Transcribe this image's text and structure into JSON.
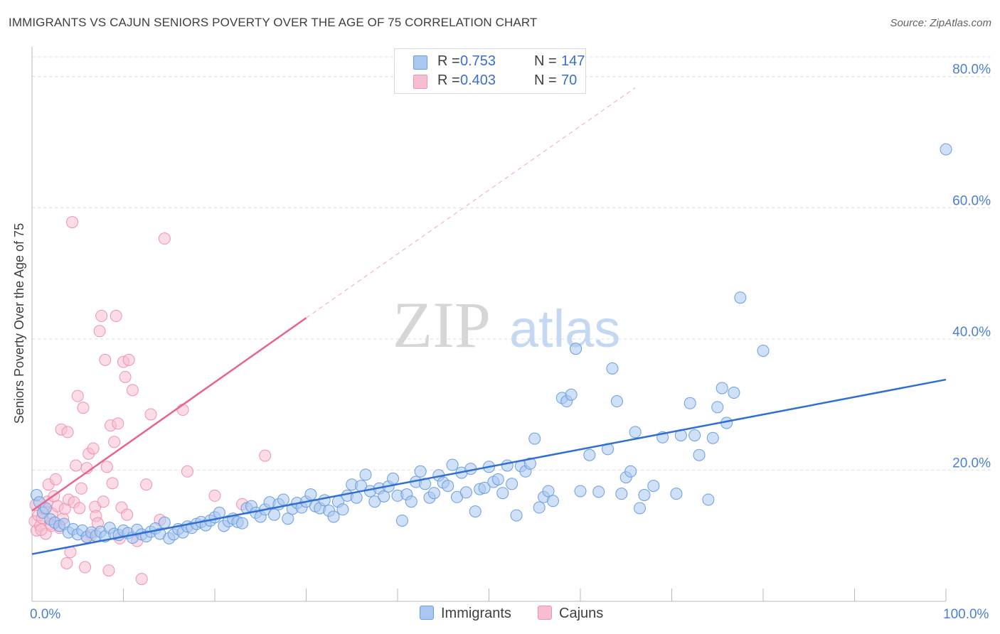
{
  "title": "IMMIGRANTS VS CAJUN SENIORS POVERTY OVER THE AGE OF 75 CORRELATION CHART",
  "source": "Source: ZipAtlas.com",
  "watermark": {
    "zip": "ZIP",
    "atlas": "atlas"
  },
  "colors": {
    "blue_fill": "#a9c7f0",
    "blue_stroke": "#6a9ee0",
    "blue_line": "#2f6fd1",
    "pink_fill": "#f7bdd0",
    "pink_stroke": "#ef93b1",
    "pink_line": "#e8648f",
    "tick_text": "#4a7fd4",
    "grid": "#dcdcdc"
  },
  "legend": {
    "rows": [
      {
        "r_label": "R =",
        "r_value": "0.753",
        "n_label": "N =",
        "n_value": "147"
      },
      {
        "r_label": "R =",
        "r_value": "0.403",
        "n_label": "N =",
        "n_value": "70"
      }
    ]
  },
  "bottom_legend": {
    "immigrants": "Immigrants",
    "cajuns": "Cajuns"
  },
  "chart_data": {
    "type": "scatter",
    "title": "IMMIGRANTS VS CAJUN SENIORS POVERTY OVER THE AGE OF 75 CORRELATION CHART",
    "xlabel": "",
    "ylabel": "Seniors Poverty Over the Age of 75",
    "xlim": [
      0,
      100
    ],
    "ylim": [
      0,
      83
    ],
    "x_tick_labels": [
      "0.0%",
      "100.0%"
    ],
    "y_ticks": [
      20,
      40,
      60,
      80
    ],
    "y_tick_labels": [
      "20.0%",
      "40.0%",
      "60.0%",
      "80.0%"
    ],
    "series": [
      {
        "name": "Immigrants",
        "color": "blue",
        "trend": {
          "x0": 0,
          "y0": 7.2,
          "x1": 100,
          "y1": 33.8
        },
        "points": [
          [
            0.5,
            16.2
          ],
          [
            0.8,
            15.1
          ],
          [
            1.2,
            13.5
          ],
          [
            1.5,
            14.2
          ],
          [
            2,
            12.5
          ],
          [
            2.5,
            12
          ],
          [
            3,
            11.5
          ],
          [
            3.5,
            11.8
          ],
          [
            4,
            10.5
          ],
          [
            4.5,
            11
          ],
          [
            5,
            10.2
          ],
          [
            5.5,
            10.8
          ],
          [
            6,
            9.8
          ],
          [
            6.5,
            10.5
          ],
          [
            7,
            10
          ],
          [
            7.5,
            10.6
          ],
          [
            8,
            9.9
          ],
          [
            8.5,
            11.2
          ],
          [
            9,
            10.3
          ],
          [
            9.5,
            10.1
          ],
          [
            10,
            10.8
          ],
          [
            10.5,
            10.4
          ],
          [
            11,
            9.7
          ],
          [
            11.5,
            10.9
          ],
          [
            12,
            10.2
          ],
          [
            12.5,
            9.9
          ],
          [
            13,
            10.6
          ],
          [
            13.5,
            11.1
          ],
          [
            14,
            10.3
          ],
          [
            14.5,
            12
          ],
          [
            15,
            9.6
          ],
          [
            15.5,
            10.2
          ],
          [
            16,
            11
          ],
          [
            16.5,
            10.5
          ],
          [
            17,
            11.4
          ],
          [
            17.5,
            11.2
          ],
          [
            18,
            11.8
          ],
          [
            18.5,
            12.1
          ],
          [
            19,
            11.6
          ],
          [
            19.5,
            12.3
          ],
          [
            20,
            12.8
          ],
          [
            20.5,
            13.5
          ],
          [
            21,
            11.5
          ],
          [
            21.5,
            12.2
          ],
          [
            22,
            12.6
          ],
          [
            22.5,
            12.1
          ],
          [
            23,
            11.9
          ],
          [
            23.5,
            14.2
          ],
          [
            24,
            14.5
          ],
          [
            24.5,
            13.5
          ],
          [
            25,
            12.9
          ],
          [
            25.5,
            14.0
          ],
          [
            26,
            15.1
          ],
          [
            26.5,
            13.2
          ],
          [
            27,
            14.8
          ],
          [
            27.5,
            15.5
          ],
          [
            28,
            12.6
          ],
          [
            28.5,
            14.1
          ],
          [
            29,
            15.0
          ],
          [
            29.5,
            14.3
          ],
          [
            30,
            15.2
          ],
          [
            30.5,
            16.3
          ],
          [
            31,
            14.5
          ],
          [
            31.5,
            14.2
          ],
          [
            32,
            15.4
          ],
          [
            32.5,
            13.8
          ],
          [
            33,
            12.9
          ],
          [
            33.5,
            15.2
          ],
          [
            34,
            14.0
          ],
          [
            34.5,
            16.1
          ],
          [
            35,
            17.8
          ],
          [
            35.5,
            15.8
          ],
          [
            36,
            17.6
          ],
          [
            36.5,
            19.3
          ],
          [
            37,
            16.8
          ],
          [
            37.5,
            15.2
          ],
          [
            38,
            17.2
          ],
          [
            38.5,
            16.0
          ],
          [
            39,
            17.5
          ],
          [
            39.5,
            18.7
          ],
          [
            40,
            16.1
          ],
          [
            40.5,
            12.3
          ],
          [
            41,
            16.3
          ],
          [
            41.5,
            15.2
          ],
          [
            42,
            18.2
          ],
          [
            42.5,
            19.8
          ],
          [
            43,
            17.9
          ],
          [
            43.5,
            15.8
          ],
          [
            44,
            16.5
          ],
          [
            44.5,
            19.2
          ],
          [
            45,
            18.1
          ],
          [
            45.5,
            17.6
          ],
          [
            46,
            20.8
          ],
          [
            46.5,
            15.9
          ],
          [
            47,
            19.6
          ],
          [
            47.5,
            16.6
          ],
          [
            48,
            20.2
          ],
          [
            48.5,
            13.7
          ],
          [
            49,
            17.1
          ],
          [
            49.5,
            17.3
          ],
          [
            50,
            20.5
          ],
          [
            50.5,
            18.2
          ],
          [
            51,
            18.6
          ],
          [
            51.5,
            16.5
          ],
          [
            52,
            20.7
          ],
          [
            52.5,
            17.9
          ],
          [
            53,
            13.1
          ],
          [
            53.5,
            20.6
          ],
          [
            54,
            19.8
          ],
          [
            54.5,
            21
          ],
          [
            55,
            24.8
          ],
          [
            55.5,
            14.3
          ],
          [
            56,
            15.9
          ],
          [
            56.5,
            16.8
          ],
          [
            57,
            15.3
          ],
          [
            58,
            31
          ],
          [
            58.5,
            30.5
          ],
          [
            59,
            31.5
          ],
          [
            59.5,
            38.5
          ],
          [
            60,
            16.8
          ],
          [
            61,
            22.3
          ],
          [
            62,
            16.7
          ],
          [
            63,
            23.2
          ],
          [
            63.5,
            35.5
          ],
          [
            64,
            30.5
          ],
          [
            64.5,
            16.4
          ],
          [
            65,
            18.9
          ],
          [
            65.5,
            19.8
          ],
          [
            66,
            25.8
          ],
          [
            66.5,
            14.2
          ],
          [
            67,
            16.2
          ],
          [
            68,
            17.6
          ],
          [
            69,
            25
          ],
          [
            70.5,
            16.4
          ],
          [
            71,
            25.3
          ],
          [
            72,
            30.2
          ],
          [
            72.5,
            25.3
          ],
          [
            73,
            22.3
          ],
          [
            74,
            15.5
          ],
          [
            74.5,
            24.9
          ],
          [
            75,
            29.6
          ],
          [
            75.5,
            32.5
          ],
          [
            76,
            27.2
          ],
          [
            76.8,
            31.8
          ],
          [
            77.5,
            46.3
          ],
          [
            80,
            38.2
          ],
          [
            100,
            68.9
          ]
        ]
      },
      {
        "name": "Cajuns",
        "color": "pink",
        "trend": {
          "x0": 0,
          "y0": 13.8,
          "x1": 30,
          "y1": 43.2,
          "extend_to": [
            66,
            78.3
          ]
        },
        "points": [
          [
            0.3,
            12.2
          ],
          [
            0.5,
            10.8
          ],
          [
            0.7,
            13.1
          ],
          [
            0.9,
            11.5
          ],
          [
            1.1,
            12.7
          ],
          [
            1.3,
            14.1
          ],
          [
            1.5,
            10.3
          ],
          [
            1.7,
            15.2
          ],
          [
            1.8,
            17.8
          ],
          [
            2,
            11.8
          ],
          [
            2.2,
            13.4
          ],
          [
            2.4,
            16.0
          ],
          [
            2.6,
            18.6
          ],
          [
            2.8,
            14.5
          ],
          [
            3,
            11.2
          ],
          [
            3.2,
            26.2
          ],
          [
            3.4,
            12.6
          ],
          [
            3.6,
            14.1
          ],
          [
            3.8,
            5.8
          ],
          [
            3.9,
            25.8
          ],
          [
            4,
            15.5
          ],
          [
            4.2,
            7.5
          ],
          [
            4.4,
            57.8
          ],
          [
            4.6,
            15.1
          ],
          [
            4.8,
            20.7
          ],
          [
            5,
            31.3
          ],
          [
            5.2,
            14.2
          ],
          [
            5.4,
            17.2
          ],
          [
            5.6,
            29.5
          ],
          [
            5.8,
            5.2
          ],
          [
            6,
            20.3
          ],
          [
            6.2,
            22.5
          ],
          [
            6.5,
            10.1
          ],
          [
            6.7,
            23.3
          ],
          [
            6.9,
            14.4
          ],
          [
            7,
            13
          ],
          [
            7.2,
            11.9
          ],
          [
            7.4,
            41.2
          ],
          [
            7.6,
            43.5
          ],
          [
            7.8,
            15.2
          ],
          [
            8,
            36.8
          ],
          [
            8.2,
            20.5
          ],
          [
            8.4,
            4.7
          ],
          [
            8.6,
            26.8
          ],
          [
            8.8,
            18
          ],
          [
            9,
            24.3
          ],
          [
            9.2,
            43.5
          ],
          [
            9.4,
            27.1
          ],
          [
            9.6,
            9.6
          ],
          [
            9.8,
            14.3
          ],
          [
            10,
            36.5
          ],
          [
            10.2,
            34.2
          ],
          [
            10.4,
            13.2
          ],
          [
            10.6,
            36.8
          ],
          [
            11,
            32.2
          ],
          [
            11.5,
            9.2
          ],
          [
            12,
            3.4
          ],
          [
            12.5,
            17.8
          ],
          [
            13,
            28.5
          ],
          [
            14,
            12.4
          ],
          [
            14.5,
            55.3
          ],
          [
            16.5,
            29.2
          ],
          [
            17,
            19.8
          ],
          [
            20,
            16.1
          ],
          [
            23,
            14.8
          ],
          [
            25.5,
            22.2
          ],
          [
            2.1,
            11.5
          ],
          [
            1,
            10.9
          ],
          [
            6,
            9.8
          ],
          [
            0.4,
            14.7
          ]
        ]
      }
    ]
  }
}
